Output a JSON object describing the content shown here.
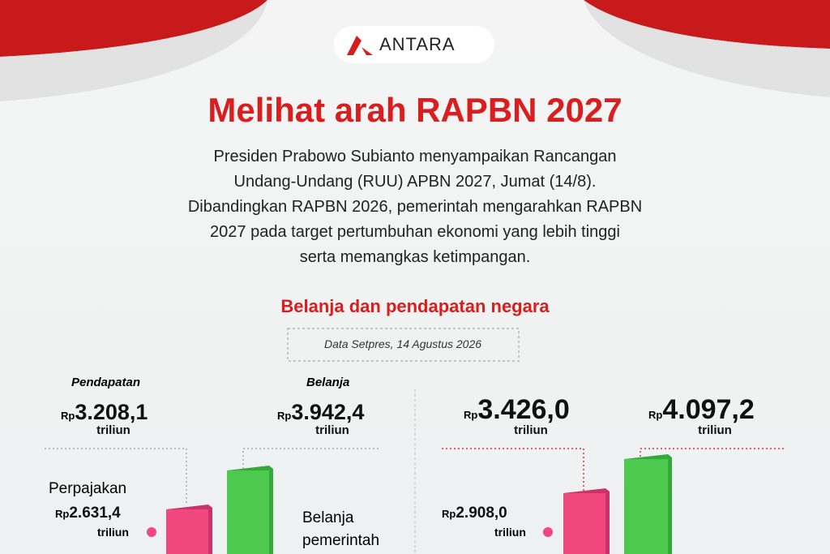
{
  "header": {
    "logo": "ANTARA",
    "title": "Melihat arah RAPBN 2027"
  },
  "intro": [
    "Presiden Prabowo Subianto menyampaikan Rancangan",
    "Undang-Undang (RUU) APBN 2027, Jumat (14/8).",
    "Dibandingkan RAPBN 2026, pemerintah mengarahkan RAPBN",
    "2027 pada target pertumbuhan ekonomi yang lebih tinggi",
    "serta memangkas ketimpangan."
  ],
  "section": {
    "title": "Belanja dan pendapatan negara",
    "source": "Data Setpres, 14 Agustus 2026"
  },
  "left": {
    "income": {
      "label": "Pendapatan",
      "currency": "Rp",
      "amount": "3.208,1",
      "unit": "triliun"
    },
    "spending": {
      "label": "Belanja",
      "currency": "Rp",
      "amount": "3.942,4",
      "unit": "triliun"
    },
    "tax": {
      "label": "Perpajakan",
      "currency": "Rp",
      "amount": "2.631,4",
      "unit": "triliun"
    },
    "gov_spending": {
      "label": [
        "Belanja",
        "pemerintah"
      ]
    }
  },
  "right": {
    "income": {
      "currency": "Rp",
      "amount": "3.426,0",
      "unit": "triliun"
    },
    "spending": {
      "currency": "Rp",
      "amount": "4.097,2",
      "unit": "triliun"
    },
    "tax": {
      "currency": "Rp",
      "amount": "2.908,0",
      "unit": "triliun"
    }
  }
}
